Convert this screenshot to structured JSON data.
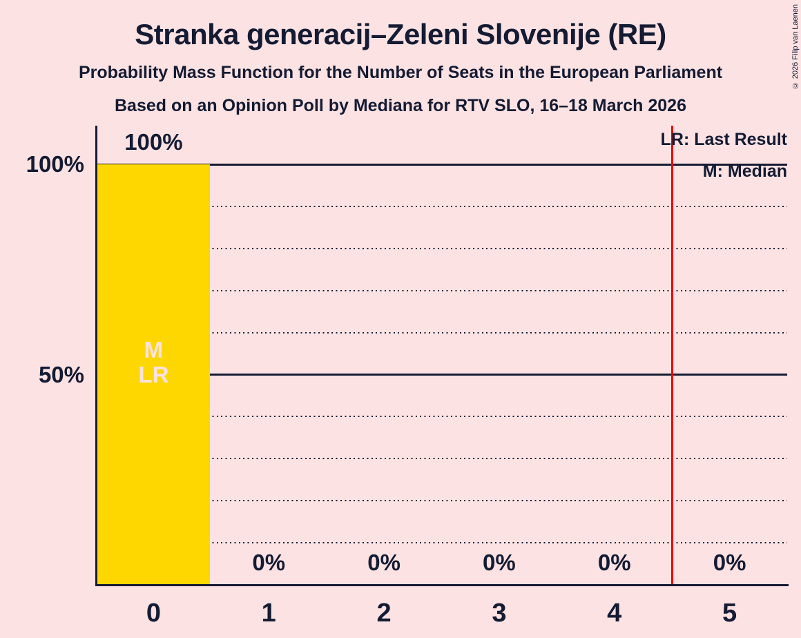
{
  "header": {
    "title": "Stranka generacij–Zeleni Slovenije (RE)",
    "subtitle": "Probability Mass Function for the Number of Seats in the European Parliament",
    "poll_details": "Based on an Opinion Poll by Mediana for RTV SLO, 16–18 March 2026"
  },
  "legend": {
    "last_result_label": "LR: Last Result",
    "median_label": "M: Median"
  },
  "copyright_notice": "© 2026 Filip van Laenen",
  "bar_markers": {
    "median": "M",
    "last_result": "LR"
  },
  "colors": {
    "background": "#fce2e2",
    "text": "#141b33",
    "bar": "#ffd700",
    "bar_marker_text": "#fce2e2",
    "red_line": "#f40000"
  },
  "chart_data": {
    "type": "bar",
    "title": "Probability Mass Function for the Number of Seats in the European Parliament",
    "categories": [
      "0",
      "1",
      "2",
      "3",
      "4",
      "5"
    ],
    "values": [
      100,
      0,
      0,
      0,
      0,
      0
    ],
    "value_labels": [
      "100%",
      "0%",
      "0%",
      "0%",
      "0%",
      "0%"
    ],
    "y_ticks": [
      {
        "value": 100,
        "label": "100%"
      },
      {
        "value": 50,
        "label": "50%"
      }
    ],
    "ylim": [
      0,
      109
    ],
    "gridlines": {
      "solid": [
        100,
        50
      ],
      "dotted": [
        90,
        80,
        70,
        60,
        40,
        30,
        20,
        10
      ]
    },
    "median_category": "0",
    "last_result_category": "0",
    "red_line_position": 4.5,
    "grid": true,
    "legend_position": "top-right"
  }
}
